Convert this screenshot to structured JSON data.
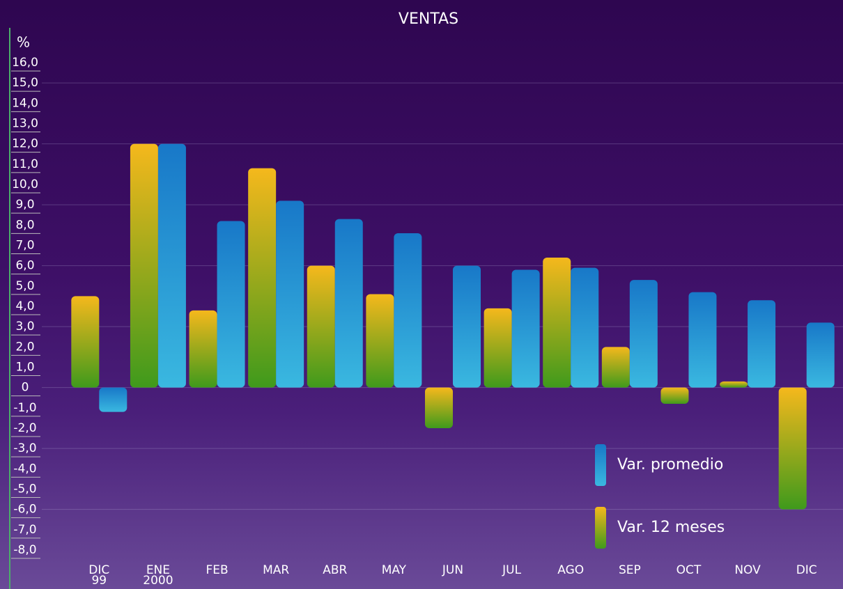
{
  "chart_data": {
    "type": "bar",
    "title": "VENTAS",
    "y_label": "%",
    "categories": [
      "DIC\n99",
      "ENE\n2000",
      "FEB",
      "MAR",
      "ABR",
      "MAY",
      "JUN",
      "JUL",
      "AGO",
      "SEP",
      "OCT",
      "NOV",
      "DIC"
    ],
    "series": [
      {
        "name": "Var. 12 meses",
        "color": "#e8b820",
        "values": [
          4.5,
          12.0,
          3.8,
          10.8,
          6.0,
          4.6,
          -2.0,
          3.9,
          6.4,
          2.0,
          -0.8,
          0.3,
          -6.0
        ]
      },
      {
        "name": "Var. promedio",
        "color": "#1a8ad0",
        "values": [
          -1.2,
          12.0,
          8.2,
          9.2,
          8.3,
          7.6,
          6.0,
          5.8,
          5.9,
          5.3,
          4.7,
          4.3,
          3.2
        ]
      }
    ],
    "ylim": [
      -8,
      16
    ],
    "yticks": [
      {
        "value": -8,
        "label": "-8,0"
      },
      {
        "value": -7,
        "label": "-7,0"
      },
      {
        "value": -6,
        "label": "-6,0"
      },
      {
        "value": -5,
        "label": "-5,0"
      },
      {
        "value": -4,
        "label": "-4,0"
      },
      {
        "value": -3,
        "label": "-3,0"
      },
      {
        "value": -2,
        "label": "-2,0"
      },
      {
        "value": -1,
        "label": "-1,0"
      },
      0,
      {
        "value": 1,
        "label": "1,0"
      },
      {
        "value": 2,
        "label": "2,0"
      },
      {
        "value": 3,
        "label": "3,0"
      },
      {
        "value": 4,
        "label": "4,0"
      },
      {
        "value": 5,
        "label": "5,0"
      },
      {
        "value": 6,
        "label": "6,0"
      },
      {
        "value": 7,
        "label": "7,0"
      },
      {
        "value": 8,
        "label": "8,0"
      },
      {
        "value": 9,
        "label": "9,0"
      },
      {
        "value": 10,
        "label": "10,0"
      },
      {
        "value": 11,
        "label": "11,0"
      },
      {
        "value": 12,
        "label": "12,0"
      },
      {
        "value": 13,
        "label": "13,0"
      },
      {
        "value": 14,
        "label": "14,0"
      },
      {
        "value": 15,
        "label": "15,0"
      },
      {
        "value": 16,
        "label": "16,0"
      }
    ],
    "grid": true
  }
}
